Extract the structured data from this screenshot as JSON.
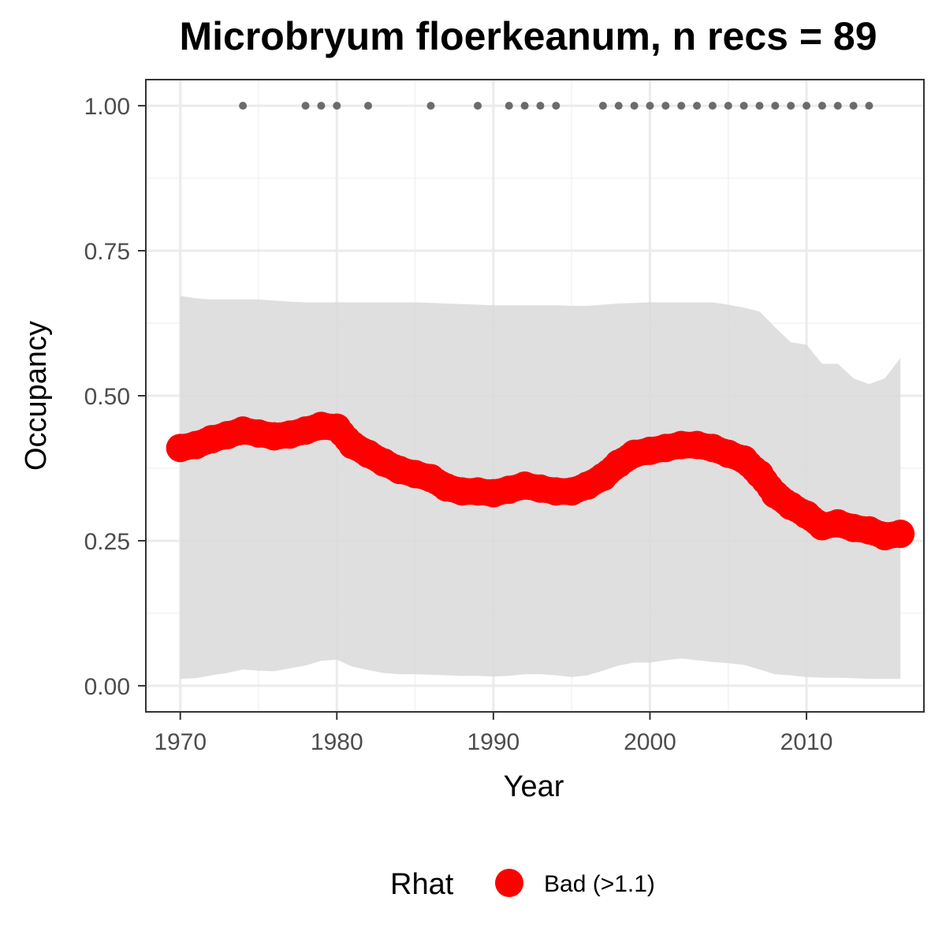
{
  "chart_data": {
    "type": "line",
    "title": "Microbryum floerkeanum, n recs = 89",
    "xlabel": "Year",
    "ylabel": "Occupancy",
    "xlim": [
      1967.8,
      2017.5
    ],
    "ylim": [
      -0.045,
      1.045
    ],
    "x_ticks": [
      1970,
      1980,
      1990,
      2000,
      2010
    ],
    "y_ticks": [
      0,
      0.25,
      0.5,
      0.75,
      1.0
    ],
    "x_tick_labels": [
      "1970",
      "1980",
      "1990",
      "2000",
      "2010"
    ],
    "y_tick_labels": [
      "0.00",
      "0.25",
      "0.50",
      "0.75",
      "1.00"
    ],
    "grid": true,
    "legend_position": "bottom",
    "legend_title": "Rhat",
    "legend_label": "Bad (>1.1)",
    "colors": {
      "line": "#ff0000",
      "ribbon": "#d9d9d9",
      "records": "#6b6b6b",
      "grid_major": "#ebebeb",
      "panel_border": "#333333"
    },
    "series": [
      {
        "name": "Bad (>1.1)",
        "x": [
          1970,
          1971,
          1972,
          1973,
          1974,
          1975,
          1976,
          1977,
          1978,
          1979,
          1980,
          1981,
          1982,
          1983,
          1984,
          1985,
          1986,
          1987,
          1988,
          1989,
          1990,
          1991,
          1992,
          1993,
          1994,
          1995,
          1996,
          1997,
          1998,
          1999,
          2000,
          2001,
          2002,
          2003,
          2004,
          2005,
          2006,
          2007,
          2008,
          2009,
          2010,
          2011,
          2012,
          2013,
          2014,
          2015,
          2016
        ],
        "y": [
          0.41,
          0.415,
          0.425,
          0.432,
          0.44,
          0.435,
          0.43,
          0.433,
          0.44,
          0.448,
          0.445,
          0.415,
          0.4,
          0.385,
          0.372,
          0.365,
          0.358,
          0.342,
          0.335,
          0.335,
          0.332,
          0.338,
          0.345,
          0.34,
          0.335,
          0.335,
          0.345,
          0.36,
          0.383,
          0.4,
          0.405,
          0.41,
          0.415,
          0.415,
          0.41,
          0.4,
          0.39,
          0.365,
          0.33,
          0.31,
          0.295,
          0.275,
          0.28,
          0.272,
          0.268,
          0.258,
          0.262
        ]
      }
    ],
    "ribbon": {
      "x": [
        1970,
        1971,
        1972,
        1973,
        1974,
        1975,
        1976,
        1977,
        1978,
        1979,
        1980,
        1981,
        1982,
        1983,
        1984,
        1985,
        1986,
        1987,
        1988,
        1989,
        1990,
        1991,
        1992,
        1993,
        1994,
        1995,
        1996,
        1997,
        1998,
        1999,
        2000,
        2001,
        2002,
        2003,
        2004,
        2005,
        2006,
        2007,
        2008,
        2009,
        2010,
        2011,
        2012,
        2013,
        2014,
        2015,
        2016
      ],
      "upper": [
        0.672,
        0.668,
        0.666,
        0.666,
        0.666,
        0.666,
        0.664,
        0.662,
        0.661,
        0.661,
        0.661,
        0.661,
        0.661,
        0.661,
        0.661,
        0.661,
        0.66,
        0.659,
        0.658,
        0.657,
        0.656,
        0.656,
        0.656,
        0.656,
        0.656,
        0.655,
        0.655,
        0.657,
        0.659,
        0.66,
        0.661,
        0.661,
        0.661,
        0.661,
        0.661,
        0.657,
        0.652,
        0.645,
        0.618,
        0.592,
        0.588,
        0.555,
        0.555,
        0.53,
        0.52,
        0.53,
        0.565
      ],
      "lower": [
        0.012,
        0.013,
        0.018,
        0.022,
        0.028,
        0.026,
        0.025,
        0.03,
        0.035,
        0.043,
        0.045,
        0.033,
        0.027,
        0.022,
        0.02,
        0.02,
        0.019,
        0.018,
        0.017,
        0.017,
        0.016,
        0.017,
        0.02,
        0.02,
        0.018,
        0.015,
        0.018,
        0.026,
        0.035,
        0.04,
        0.04,
        0.044,
        0.047,
        0.044,
        0.041,
        0.039,
        0.036,
        0.028,
        0.02,
        0.018,
        0.015,
        0.014,
        0.014,
        0.013,
        0.012,
        0.012,
        0.012
      ]
    },
    "records": {
      "x": [
        1974,
        1978,
        1979,
        1980,
        1982,
        1986,
        1989,
        1991,
        1992,
        1993,
        1994,
        1997,
        1998,
        1999,
        2000,
        2001,
        2002,
        2003,
        2004,
        2005,
        2006,
        2007,
        2008,
        2009,
        2010,
        2011,
        2012,
        2013,
        2014
      ],
      "y": 1.0
    }
  }
}
